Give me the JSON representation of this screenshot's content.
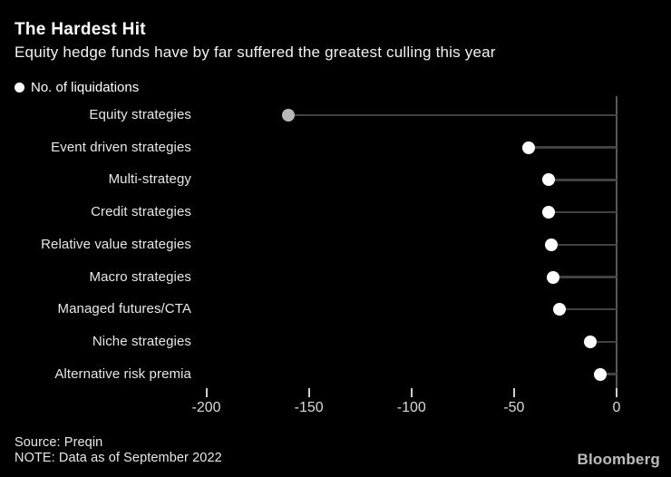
{
  "header": {
    "title": "The Hardest Hit",
    "subtitle": "Equity hedge funds have by far suffered the greatest culling this year"
  },
  "legend": {
    "label": "No. of liquidations"
  },
  "chart_data": {
    "type": "bar",
    "variant": "horizontal-lollipop",
    "series_name": "No. of liquidations",
    "categories": [
      "Equity strategies",
      "Event driven strategies",
      "Multi-strategy",
      "Credit strategies",
      "Relative value strategies",
      "Macro strategies",
      "Managed futures/CTA",
      "Niche strategies",
      "Alternative risk premia"
    ],
    "values": [
      -160,
      -43,
      -33,
      -33,
      -32,
      -31,
      -28,
      -13,
      -8
    ],
    "xlabel": "",
    "ylabel": "",
    "xlim": [
      -200,
      0
    ],
    "x_ticks": [
      -200,
      -150,
      -100,
      -50,
      0
    ],
    "grid": false,
    "legend_position": "top-left",
    "colors": {
      "background": "#000000",
      "dot_default": "#ffffff",
      "dot_highlight": "#b8b8b8",
      "highlight_index": 0,
      "stem": "#424242",
      "axis": "#5a5a5a",
      "tick_label": "#d9d9d9"
    }
  },
  "footer": {
    "source": "Source: Preqin",
    "note": "NOTE: Data as of September 2022",
    "brand": "Bloomberg"
  }
}
